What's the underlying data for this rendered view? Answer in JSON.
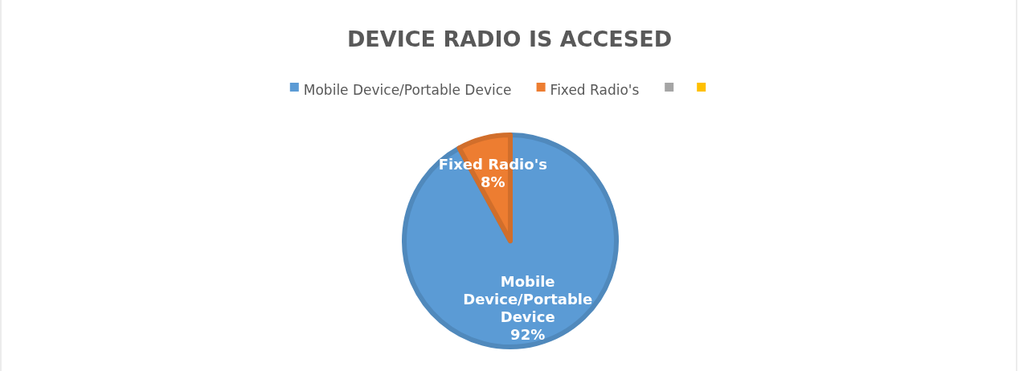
{
  "chart_data": {
    "type": "pie",
    "title": "DEVICE RADIO IS ACCESED",
    "categories": [
      "Mobile Device/Portable Device",
      "Fixed Radio's",
      null,
      null
    ],
    "values": [
      92,
      8,
      0,
      0
    ],
    "colors": [
      "#5b9bd5",
      "#ed7d31",
      "#a5a5a5",
      "#ffc000"
    ],
    "value_labels": [
      "92%",
      "8%",
      null,
      null
    ],
    "legend": "top"
  }
}
